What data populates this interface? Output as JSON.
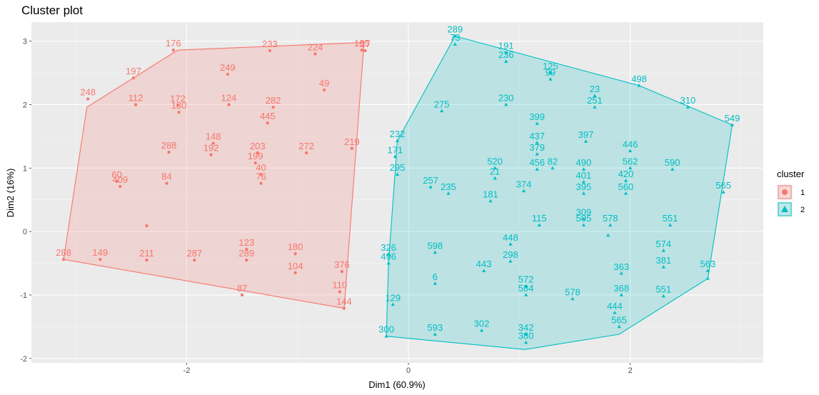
{
  "chart_data": {
    "type": "scatter",
    "title": "Cluster plot",
    "xlabel": "Dim1 (60.9%)",
    "ylabel": "Dim2 (16%)",
    "xlim": [
      -3.4,
      3.2
    ],
    "ylim": [
      -2.07,
      3.3
    ],
    "x_ticks": [
      -2,
      0,
      2
    ],
    "y_ticks": [
      -2,
      -1,
      0,
      1,
      2,
      3
    ],
    "x_tick_labels": [
      "-2",
      "0",
      "2"
    ],
    "y_tick_labels": [
      "-2",
      "-1",
      "0",
      "1",
      "2",
      "3"
    ],
    "grid": true,
    "legend": {
      "title": "cluster",
      "position": "right",
      "entries": [
        "1",
        "2"
      ]
    },
    "colors": {
      "1": "#F8766D",
      "2": "#00BFC4"
    },
    "series": [
      {
        "name": "1",
        "hull": [
          [
            -3.11,
            -0.44
          ],
          [
            -2.9,
            1.96
          ],
          [
            -2.08,
            2.86
          ],
          [
            -0.4,
            2.98
          ],
          [
            -0.58,
            -1.21
          ]
        ],
        "points": [
          {
            "x": -2.12,
            "y": 2.86,
            "label": "176"
          },
          {
            "x": -1.25,
            "y": 2.85,
            "label": "233"
          },
          {
            "x": -0.84,
            "y": 2.8,
            "label": "224"
          },
          {
            "x": -0.39,
            "y": 2.85,
            "label": "27"
          },
          {
            "x": -0.42,
            "y": 2.86,
            "label": "185"
          },
          {
            "x": -2.48,
            "y": 2.42,
            "label": "197"
          },
          {
            "x": -1.63,
            "y": 2.48,
            "label": "249"
          },
          {
            "x": -0.76,
            "y": 2.23,
            "label": "49"
          },
          {
            "x": -2.89,
            "y": 2.09,
            "label": "248"
          },
          {
            "x": -2.46,
            "y": 2.0,
            "label": "112"
          },
          {
            "x": -2.07,
            "y": 1.88,
            "label": "130"
          },
          {
            "x": -1.62,
            "y": 2.0,
            "label": "124"
          },
          {
            "x": -1.22,
            "y": 1.96,
            "label": "282"
          },
          {
            "x": -1.27,
            "y": 1.71,
            "label": "445"
          },
          {
            "x": -2.08,
            "y": 1.99,
            "label": "172"
          },
          {
            "x": -1.76,
            "y": 1.39,
            "label": "148"
          },
          {
            "x": -1.78,
            "y": 1.21,
            "label": "192"
          },
          {
            "x": -1.36,
            "y": 1.24,
            "label": "203"
          },
          {
            "x": -1.38,
            "y": 1.08,
            "label": "199"
          },
          {
            "x": -0.92,
            "y": 1.24,
            "label": "272"
          },
          {
            "x": -0.51,
            "y": 1.31,
            "label": "219"
          },
          {
            "x": -2.16,
            "y": 1.25,
            "label": "288"
          },
          {
            "x": -1.33,
            "y": 0.9,
            "label": "40"
          },
          {
            "x": -1.33,
            "y": 0.76,
            "label": "76"
          },
          {
            "x": -2.18,
            "y": 0.76,
            "label": "84"
          },
          {
            "x": -2.63,
            "y": 0.79,
            "label": "60"
          },
          {
            "x": -2.6,
            "y": 0.71,
            "label": "409"
          },
          {
            "x": -2.36,
            "y": 0.09,
            "label": ""
          },
          {
            "x": -3.11,
            "y": -0.44,
            "label": "288"
          },
          {
            "x": -2.78,
            "y": -0.44,
            "label": "149"
          },
          {
            "x": -2.36,
            "y": -0.45,
            "label": "211"
          },
          {
            "x": -1.93,
            "y": -0.45,
            "label": "287"
          },
          {
            "x": -1.46,
            "y": -0.45,
            "label": "289"
          },
          {
            "x": -1.46,
            "y": -0.28,
            "label": "123"
          },
          {
            "x": -1.02,
            "y": -0.35,
            "label": "180"
          },
          {
            "x": -1.02,
            "y": -0.65,
            "label": "104"
          },
          {
            "x": -0.6,
            "y": -0.63,
            "label": "376"
          },
          {
            "x": -0.62,
            "y": -0.95,
            "label": "110"
          },
          {
            "x": -0.58,
            "y": -1.21,
            "label": "144"
          },
          {
            "x": -1.5,
            "y": -1.0,
            "label": "87"
          }
        ]
      },
      {
        "name": "2",
        "hull": [
          [
            0.42,
            3.08
          ],
          [
            2.08,
            2.3
          ],
          [
            2.92,
            1.68
          ],
          [
            2.7,
            -0.74
          ],
          [
            1.9,
            -1.62
          ],
          [
            1.05,
            -1.86
          ],
          [
            -0.2,
            -1.65
          ],
          [
            -0.18,
            -0.5
          ],
          [
            -0.1,
            1.43
          ]
        ],
        "points": [
          {
            "x": 0.42,
            "y": 3.08,
            "label": "289"
          },
          {
            "x": 0.42,
            "y": 2.95,
            "label": "73"
          },
          {
            "x": 0.88,
            "y": 2.82,
            "label": "191"
          },
          {
            "x": 0.88,
            "y": 2.68,
            "label": "236"
          },
          {
            "x": 1.28,
            "y": 2.5,
            "label": "125"
          },
          {
            "x": 1.28,
            "y": 2.4,
            "label": "99"
          },
          {
            "x": 1.68,
            "y": 2.14,
            "label": "23"
          },
          {
            "x": 1.68,
            "y": 1.96,
            "label": "251"
          },
          {
            "x": 2.08,
            "y": 2.3,
            "label": "498"
          },
          {
            "x": 2.52,
            "y": 1.96,
            "label": "310"
          },
          {
            "x": 2.92,
            "y": 1.68,
            "label": "549"
          },
          {
            "x": 0.3,
            "y": 1.9,
            "label": "275"
          },
          {
            "x": 0.88,
            "y": 2.0,
            "label": "230"
          },
          {
            "x": 1.16,
            "y": 1.7,
            "label": "399"
          },
          {
            "x": 1.16,
            "y": 1.4,
            "label": "437"
          },
          {
            "x": 1.16,
            "y": 1.22,
            "label": "379"
          },
          {
            "x": 1.6,
            "y": 1.42,
            "label": "397"
          },
          {
            "x": 2.0,
            "y": 1.27,
            "label": "446"
          },
          {
            "x": 2.0,
            "y": 1.0,
            "label": "562"
          },
          {
            "x": 2.38,
            "y": 0.98,
            "label": "590"
          },
          {
            "x": 2.84,
            "y": 0.62,
            "label": "565"
          },
          {
            "x": -0.1,
            "y": 1.43,
            "label": "232"
          },
          {
            "x": -0.12,
            "y": 1.18,
            "label": "171"
          },
          {
            "x": -0.1,
            "y": 0.9,
            "label": "295"
          },
          {
            "x": 0.2,
            "y": 0.7,
            "label": "257"
          },
          {
            "x": 0.36,
            "y": 0.6,
            "label": "235"
          },
          {
            "x": 0.78,
            "y": 1.0,
            "label": "520"
          },
          {
            "x": 0.78,
            "y": 0.84,
            "label": "21"
          },
          {
            "x": 0.74,
            "y": 0.48,
            "label": "181"
          },
          {
            "x": 1.04,
            "y": 0.64,
            "label": "374"
          },
          {
            "x": 1.16,
            "y": 0.98,
            "label": "456"
          },
          {
            "x": 1.3,
            "y": 1.0,
            "label": "82"
          },
          {
            "x": 1.58,
            "y": 0.98,
            "label": "490"
          },
          {
            "x": 1.58,
            "y": 0.78,
            "label": "401"
          },
          {
            "x": 1.58,
            "y": 0.6,
            "label": "395"
          },
          {
            "x": 1.96,
            "y": 0.8,
            "label": "420"
          },
          {
            "x": 1.96,
            "y": 0.6,
            "label": "560"
          },
          {
            "x": 2.36,
            "y": 0.1,
            "label": "551"
          },
          {
            "x": 1.18,
            "y": 0.1,
            "label": "115"
          },
          {
            "x": 1.58,
            "y": 0.2,
            "label": "309"
          },
          {
            "x": 1.58,
            "y": 0.1,
            "label": "505"
          },
          {
            "x": 1.82,
            "y": 0.1,
            "label": "578"
          },
          {
            "x": -0.18,
            "y": -0.5,
            "label": "496"
          },
          {
            "x": -0.18,
            "y": -0.36,
            "label": "326"
          },
          {
            "x": 0.24,
            "y": -0.33,
            "label": "598"
          },
          {
            "x": 0.92,
            "y": -0.2,
            "label": "448"
          },
          {
            "x": 0.92,
            "y": -0.47,
            "label": "298"
          },
          {
            "x": 0.68,
            "y": -0.62,
            "label": "443"
          },
          {
            "x": 0.24,
            "y": -0.82,
            "label": "6"
          },
          {
            "x": 1.06,
            "y": -0.86,
            "label": "572"
          },
          {
            "x": 1.06,
            "y": -1.0,
            "label": "584"
          },
          {
            "x": 1.48,
            "y": -1.06,
            "label": "578"
          },
          {
            "x": 1.92,
            "y": -0.66,
            "label": "363"
          },
          {
            "x": 1.92,
            "y": -1.0,
            "label": "368"
          },
          {
            "x": 2.3,
            "y": -0.3,
            "label": "574"
          },
          {
            "x": 2.3,
            "y": -0.56,
            "label": "381"
          },
          {
            "x": 2.3,
            "y": -1.02,
            "label": "551"
          },
          {
            "x": 2.7,
            "y": -0.62,
            "label": "563"
          },
          {
            "x": 2.7,
            "y": -0.74,
            "label": ""
          },
          {
            "x": -0.14,
            "y": -1.15,
            "label": "129"
          },
          {
            "x": -0.2,
            "y": -1.65,
            "label": "300"
          },
          {
            "x": 0.24,
            "y": -1.62,
            "label": "593"
          },
          {
            "x": 0.66,
            "y": -1.56,
            "label": "302"
          },
          {
            "x": 1.06,
            "y": -1.62,
            "label": "342"
          },
          {
            "x": 1.06,
            "y": -1.75,
            "label": "380"
          },
          {
            "x": 1.86,
            "y": -1.28,
            "label": "444"
          },
          {
            "x": 1.9,
            "y": -1.5,
            "label": "565"
          },
          {
            "x": 1.8,
            "y": -0.06,
            "label": ""
          }
        ]
      }
    ]
  }
}
